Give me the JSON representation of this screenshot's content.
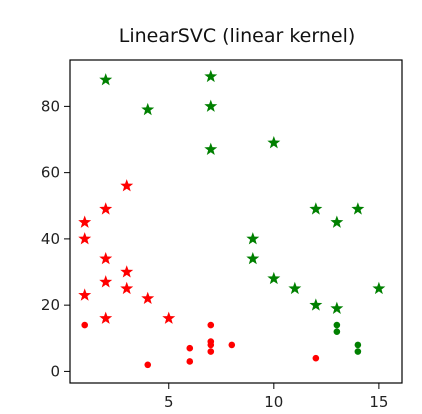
{
  "chart_data": {
    "type": "scatter",
    "title": "LinearSVC (linear kernel)",
    "xlabel": "",
    "ylabel": "",
    "xlim": [
      0.3,
      16.1
    ],
    "ylim": [
      -3.5,
      94
    ],
    "xticks": [
      5,
      10,
      15
    ],
    "yticks": [
      0,
      20,
      40,
      60,
      80
    ],
    "grid": false,
    "series": [
      {
        "marker": "star",
        "color": "#ff0000",
        "points": [
          [
            1,
            45
          ],
          [
            1,
            40
          ],
          [
            1,
            23
          ],
          [
            2,
            49
          ],
          [
            2,
            34
          ],
          [
            2,
            27
          ],
          [
            2,
            16
          ],
          [
            3,
            56
          ],
          [
            3,
            30
          ],
          [
            3,
            25
          ],
          [
            4,
            22
          ],
          [
            5,
            16
          ]
        ]
      },
      {
        "marker": "dot",
        "color": "#ff0000",
        "points": [
          [
            1,
            14
          ],
          [
            4,
            2
          ],
          [
            6,
            7
          ],
          [
            6,
            3
          ],
          [
            7,
            14
          ],
          [
            7,
            9
          ],
          [
            7,
            8
          ],
          [
            7,
            6
          ],
          [
            8,
            8
          ],
          [
            12,
            4
          ]
        ]
      },
      {
        "marker": "star",
        "color": "#008000",
        "points": [
          [
            2,
            88
          ],
          [
            4,
            79
          ],
          [
            7,
            89
          ],
          [
            7,
            80
          ],
          [
            7,
            67
          ],
          [
            9,
            40
          ],
          [
            9,
            34
          ],
          [
            10,
            69
          ],
          [
            10,
            28
          ],
          [
            11,
            25
          ],
          [
            12,
            49
          ],
          [
            12,
            20
          ],
          [
            13,
            45
          ],
          [
            13,
            19
          ],
          [
            14,
            49
          ],
          [
            15,
            25
          ]
        ]
      },
      {
        "marker": "dot",
        "color": "#008000",
        "points": [
          [
            13,
            14
          ],
          [
            13,
            12
          ],
          [
            14,
            8
          ],
          [
            14,
            6
          ]
        ]
      }
    ]
  }
}
